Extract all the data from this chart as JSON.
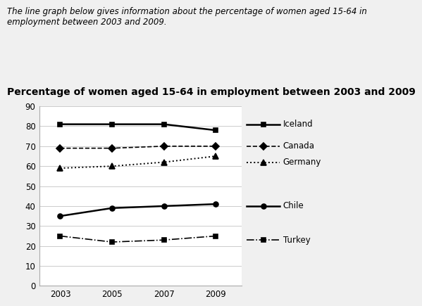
{
  "title": "Percentage of women aged 15-64 in employment between 2003 and 2009",
  "subtitle": "The line graph below gives information about the percentage of women aged 15-64 in\nemployment between 2003 and 2009.",
  "years": [
    2003,
    2005,
    2007,
    2009
  ],
  "series": {
    "Iceland": [
      81,
      81,
      81,
      78
    ],
    "Canada": [
      69,
      69,
      70,
      70
    ],
    "Germany": [
      59,
      60,
      62,
      65
    ],
    "Chile": [
      35,
      39,
      40,
      41
    ],
    "Turkey": [
      25,
      22,
      23,
      25
    ]
  },
  "ylim": [
    0,
    90
  ],
  "yticks": [
    0,
    10,
    20,
    30,
    40,
    50,
    60,
    70,
    80,
    90
  ],
  "background_color": "#f0f0f0",
  "plot_bg_color": "#ffffff",
  "grid_color": "#cccccc",
  "title_fontsize": 10,
  "subtitle_fontsize": 8.5,
  "legend_fontsize": 8.5,
  "tick_fontsize": 8.5
}
